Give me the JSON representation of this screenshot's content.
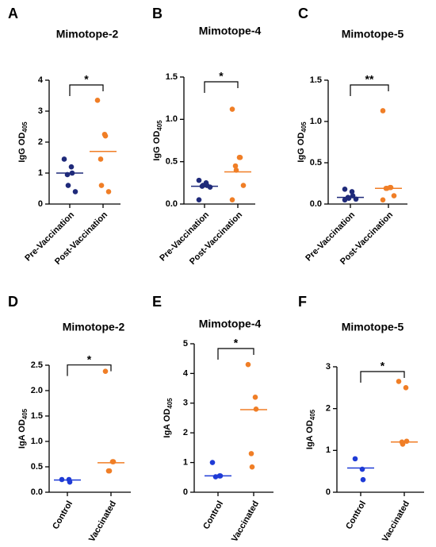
{
  "chart_data": [
    {
      "type": "scatter",
      "panel": "A",
      "title": "Mimotope-2",
      "ylabel": "IgG OD",
      "ylabel_subscript": "405",
      "categories": [
        "Pre-Vaccination",
        "Post-Vaccination"
      ],
      "colors": [
        "#1f2a7a",
        "#f07e26"
      ],
      "points": [
        [
          1.45,
          1.2,
          1.0,
          0.95,
          0.6,
          0.4
        ],
        [
          3.35,
          2.25,
          2.2,
          1.45,
          0.6,
          0.4
        ]
      ],
      "medians": [
        1.0,
        1.7
      ],
      "significance": "*",
      "ylim": [
        0,
        4
      ],
      "yticks": [
        0,
        1,
        2,
        3,
        4
      ]
    },
    {
      "type": "scatter",
      "panel": "B",
      "title": "Mimotope-4",
      "ylabel": "IgG OD",
      "ylabel_subscript": "405",
      "categories": [
        "Pre-Vaccination",
        "Post-Vaccination"
      ],
      "colors": [
        "#1f2a7a",
        "#f07e26"
      ],
      "points": [
        [
          0.28,
          0.25,
          0.22,
          0.21,
          0.22,
          0.2,
          0.05
        ],
        [
          1.12,
          0.55,
          0.55,
          0.45,
          0.4,
          0.22,
          0.05
        ]
      ],
      "medians": [
        0.21,
        0.38
      ],
      "significance": "*",
      "ylim": [
        0,
        1.5
      ],
      "yticks": [
        {
          "value": 0,
          "label": "0.0"
        },
        0.5,
        {
          "value": 1,
          "label": "1.0"
        },
        1.5
      ]
    },
    {
      "type": "scatter",
      "panel": "C",
      "title": "Mimotope-5",
      "ylabel": "IgG OD",
      "ylabel_subscript": "405",
      "categories": [
        "Pre-Vaccination",
        "Post-Vaccination"
      ],
      "colors": [
        "#1f2a7a",
        "#f07e26"
      ],
      "points": [
        [
          0.18,
          0.15,
          0.1,
          0.08,
          0.07,
          0.06,
          0.05
        ],
        [
          1.13,
          0.2,
          0.2,
          0.19,
          0.19,
          0.1,
          0.05
        ]
      ],
      "medians": [
        0.08,
        0.19
      ],
      "significance": "**",
      "ylim": [
        0,
        1.5
      ],
      "yticks": [
        {
          "value": 0,
          "label": "0.0"
        },
        0.5,
        {
          "value": 1,
          "label": "1.0"
        },
        1.5
      ]
    },
    {
      "type": "scatter",
      "panel": "D",
      "title": "Mimotope-2",
      "ylabel": "IgA OD",
      "ylabel_subscript": "405",
      "categories": [
        "Control",
        "Vaccinated"
      ],
      "colors": [
        "#1f3bd6",
        "#f07e26"
      ],
      "points": [
        [
          0.25,
          0.25,
          0.2
        ],
        [
          2.38,
          0.6,
          0.6,
          0.42,
          0.42
        ]
      ],
      "medians": [
        0.24,
        0.58
      ],
      "significance": "*",
      "ylim": [
        0,
        2.5
      ],
      "yticks": [
        {
          "value": 0,
          "label": "0.0"
        },
        0.5,
        {
          "value": 1,
          "label": "1.0"
        },
        1.5,
        {
          "value": 2,
          "label": "2.0"
        },
        2.5
      ]
    },
    {
      "type": "scatter",
      "panel": "E",
      "title": "Mimotope-4",
      "ylabel": "IgA OD",
      "ylabel_subscript": "405",
      "categories": [
        "Control",
        "Vaccinated"
      ],
      "colors": [
        "#1f3bd6",
        "#f07e26"
      ],
      "points": [
        [
          1.0,
          0.55,
          0.55,
          0.52
        ],
        [
          4.3,
          3.2,
          2.8,
          1.3,
          0.85
        ]
      ],
      "medians": [
        0.55,
        2.78
      ],
      "significance": "*",
      "ylim": [
        0,
        5
      ],
      "yticks": [
        0,
        1,
        2,
        3,
        4,
        5
      ]
    },
    {
      "type": "scatter",
      "panel": "F",
      "title": "Mimotope-5",
      "ylabel": "IgA OD",
      "ylabel_subscript": "405",
      "categories": [
        "Control",
        "Vaccinated"
      ],
      "colors": [
        "#1f3bd6",
        "#f07e26"
      ],
      "points": [
        [
          0.8,
          0.55,
          0.3
        ],
        [
          2.65,
          2.5,
          1.22,
          1.2,
          1.15
        ]
      ],
      "medians": [
        0.58,
        1.2
      ],
      "significance": "*",
      "ylim": [
        0,
        3
      ],
      "yticks": [
        0,
        1,
        2,
        3
      ]
    }
  ]
}
